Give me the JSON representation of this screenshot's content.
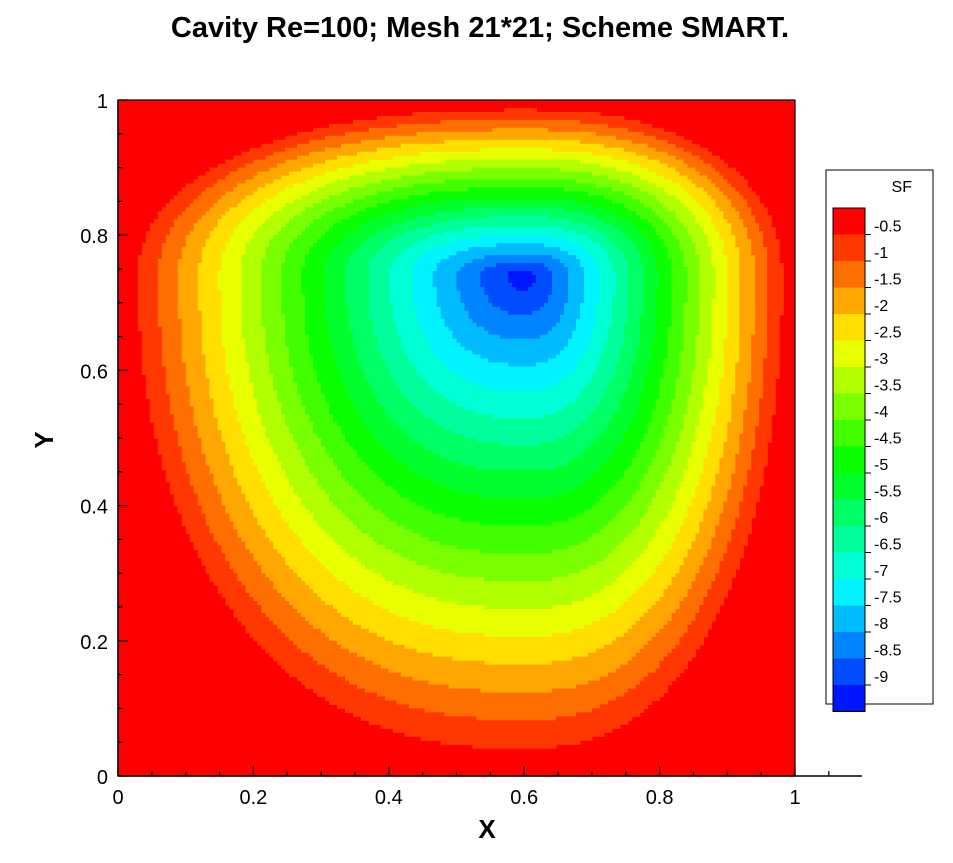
{
  "chart_data": {
    "type": "contour",
    "title": "Cavity Re=100; Mesh 21*21; Scheme SMART.",
    "xlabel": "X",
    "ylabel": "Y",
    "xlim": [
      0,
      1
    ],
    "ylim": [
      0,
      1
    ],
    "x_ticks": [
      "0",
      "0.2",
      "0.4",
      "0.6",
      "0.8",
      "1"
    ],
    "y_ticks": [
      "0",
      "0.2",
      "0.4",
      "0.6",
      "0.8",
      "1"
    ],
    "variable": "SF",
    "legend_position": "right",
    "levels": [
      -0.5,
      -1,
      -1.5,
      -2,
      -2.5,
      -3,
      -3.5,
      -4,
      -4.5,
      -5,
      -5.5,
      -6,
      -6.5,
      -7,
      -7.5,
      -8,
      -8.5,
      -9
    ],
    "level_labels": [
      "-0.5",
      "-1",
      "-1.5",
      "-2",
      "-2.5",
      "-3",
      "-3.5",
      "-4",
      "-4.5",
      "-5",
      "-5.5",
      "-6",
      "-6.5",
      "-7",
      "-7.5",
      "-8",
      "-8.5",
      "-9"
    ],
    "colors": [
      "#ff0000",
      "#ff3700",
      "#ff6f00",
      "#ffa600",
      "#ffde00",
      "#e8ff00",
      "#b1ff00",
      "#79ff00",
      "#42ff00",
      "#0aff00",
      "#00ff2d",
      "#00ff65",
      "#00ff9c",
      "#00ffd4",
      "#00f3ff",
      "#00bcff",
      "#0084ff",
      "#004dff",
      "#0015ff"
    ],
    "vortex_center": [
      0.6,
      0.74
    ],
    "min_value": -9.3
  }
}
